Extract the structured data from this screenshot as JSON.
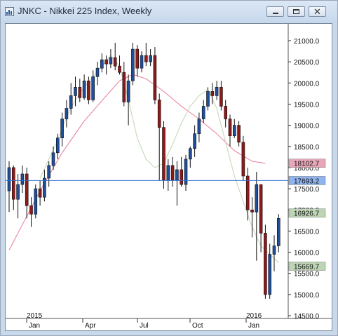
{
  "window": {
    "title": "JNKC - Nikkei 225 Index, Weekly",
    "buttons": [
      "minimize",
      "maximize",
      "close"
    ]
  },
  "colors": {
    "up_body": "#1f4e9c",
    "down_body": "#8e1a1a",
    "sma_fast": "#c8dcc0",
    "sma_slow": "#e87a9a",
    "price_line": "#2e6fcf"
  },
  "chart_data": {
    "type": "candlestick",
    "title": "JNKC - Nikkei 225 Index, Weekly",
    "y_ticks": [
      "21000.0",
      "20500.0",
      "20000.0",
      "19500.0",
      "19000.0",
      "18500.0",
      "18000.0",
      "17500.0",
      "17000.0",
      "16500.0",
      "16000.0",
      "15500.0",
      "15000.0",
      "14500.0"
    ],
    "ylim": [
      14500,
      21000
    ],
    "x_year_labels": [
      "2015",
      "2016"
    ],
    "x_month_labels": [
      "Jan",
      "Apr",
      "Jul",
      "Oct",
      "Jan"
    ],
    "price_labels": [
      {
        "text": "18102.7",
        "value": 18102.7,
        "bg": "#e8a7b8"
      },
      {
        "text": "17693.2",
        "value": 17693.2,
        "bg": "#8fb4ee"
      },
      {
        "text": "16926.7",
        "value": 16926.7,
        "bg": "#bdd5b5"
      },
      {
        "text": "15669.7",
        "value": 15669.7,
        "bg": "#bdd5b5"
      }
    ],
    "horizontal_line": 17693.2,
    "candles": [
      [
        17450,
        18150,
        16950,
        18000
      ],
      [
        18000,
        18050,
        17000,
        17250
      ],
      [
        17250,
        17850,
        16800,
        17600
      ],
      [
        17600,
        18050,
        17400,
        17850
      ],
      [
        17850,
        18000,
        16800,
        17100
      ],
      [
        17100,
        17300,
        16600,
        16900
      ],
      [
        16900,
        17600,
        16800,
        17500
      ],
      [
        17500,
        17700,
        17100,
        17300
      ],
      [
        17300,
        17950,
        17200,
        17750
      ],
      [
        17750,
        18150,
        17550,
        18050
      ],
      [
        18050,
        18500,
        17950,
        18350
      ],
      [
        18350,
        18800,
        18200,
        18700
      ],
      [
        18700,
        19300,
        18500,
        19150
      ],
      [
        19150,
        19600,
        18950,
        19400
      ],
      [
        19400,
        20000,
        19250,
        19700
      ],
      [
        19700,
        20150,
        19450,
        19900
      ],
      [
        19900,
        20100,
        19550,
        19650
      ],
      [
        19650,
        20200,
        19600,
        20050
      ],
      [
        20050,
        20150,
        19500,
        19600
      ],
      [
        19600,
        20300,
        19550,
        20150
      ],
      [
        20150,
        20500,
        19950,
        20350
      ],
      [
        20350,
        20700,
        20250,
        20550
      ],
      [
        20550,
        20650,
        20200,
        20450
      ],
      [
        20450,
        20800,
        20350,
        20600
      ],
      [
        20600,
        20950,
        20300,
        20400
      ],
      [
        20400,
        20650,
        20200,
        20250
      ],
      [
        20250,
        20500,
        19450,
        19550
      ],
      [
        19550,
        20200,
        19000,
        20050
      ],
      [
        20050,
        20950,
        19950,
        20800
      ],
      [
        20800,
        20900,
        20150,
        20350
      ],
      [
        20350,
        20750,
        20250,
        20650
      ],
      [
        20650,
        20950,
        20400,
        20500
      ],
      [
        20500,
        20800,
        20400,
        20650
      ],
      [
        20650,
        20850,
        19500,
        19600
      ],
      [
        19600,
        19750,
        17700,
        18950
      ],
      [
        18950,
        19100,
        17500,
        17700
      ],
      [
        17700,
        18200,
        17450,
        18050
      ],
      [
        18050,
        18250,
        17550,
        17700
      ],
      [
        17700,
        18150,
        17100,
        17950
      ],
      [
        17950,
        18250,
        17550,
        17600
      ],
      [
        17600,
        18300,
        17450,
        18200
      ],
      [
        18200,
        18500,
        18000,
        18450
      ],
      [
        18450,
        19000,
        18250,
        18800
      ],
      [
        18800,
        19300,
        18600,
        19150
      ],
      [
        19150,
        19600,
        19050,
        19450
      ],
      [
        19450,
        19900,
        19350,
        19800
      ],
      [
        19800,
        20000,
        19500,
        19700
      ],
      [
        19700,
        20050,
        19600,
        19900
      ],
      [
        19900,
        20050,
        19350,
        19450
      ],
      [
        19450,
        19600,
        18950,
        19150
      ],
      [
        19150,
        19250,
        18500,
        18750
      ],
      [
        18750,
        19150,
        18700,
        19000
      ],
      [
        19000,
        19100,
        18500,
        18600
      ],
      [
        18600,
        18750,
        17700,
        17800
      ],
      [
        17800,
        18000,
        16750,
        17000
      ],
      [
        17000,
        17300,
        16350,
        16950
      ],
      [
        16950,
        17900,
        15800,
        17600
      ],
      [
        17600,
        17600,
        16000,
        16450
      ],
      [
        16450,
        16650,
        14900,
        15000
      ],
      [
        15000,
        16200,
        14900,
        15950
      ],
      [
        15950,
        16400,
        15550,
        16150
      ],
      [
        16150,
        16900,
        16000,
        16800
      ]
    ],
    "sma_fast_points": [
      [
        14,
        17750
      ],
      [
        18,
        18200
      ],
      [
        22,
        18650
      ],
      [
        26,
        19200
      ],
      [
        30,
        19600
      ],
      [
        34,
        19900
      ],
      [
        38,
        20150
      ],
      [
        42,
        20400
      ],
      [
        46,
        20650
      ],
      [
        50,
        20400
      ],
      [
        54,
        19600
      ],
      [
        58,
        18700
      ],
      [
        62,
        18200
      ],
      [
        66,
        18000
      ],
      [
        70,
        18100
      ],
      [
        74,
        18550
      ],
      [
        78,
        19050
      ],
      [
        82,
        19450
      ],
      [
        86,
        19700
      ],
      [
        90,
        19850
      ],
      [
        94,
        19400
      ],
      [
        98,
        18600
      ],
      [
        102,
        17800
      ],
      [
        106,
        17200
      ],
      [
        110,
        16600
      ],
      [
        114,
        16150
      ],
      [
        118,
        15950
      ],
      [
        122,
        15750
      ]
    ],
    "sma_slow_points": [
      [
        0,
        16050
      ],
      [
        6,
        16650
      ],
      [
        14,
        17450
      ],
      [
        24,
        18350
      ],
      [
        34,
        19100
      ],
      [
        44,
        19700
      ],
      [
        50,
        20050
      ],
      [
        56,
        20200
      ],
      [
        62,
        20100
      ],
      [
        70,
        19800
      ],
      [
        78,
        19450
      ],
      [
        86,
        19150
      ],
      [
        94,
        18800
      ],
      [
        102,
        18400
      ],
      [
        110,
        18150
      ],
      [
        116,
        18100
      ]
    ]
  }
}
